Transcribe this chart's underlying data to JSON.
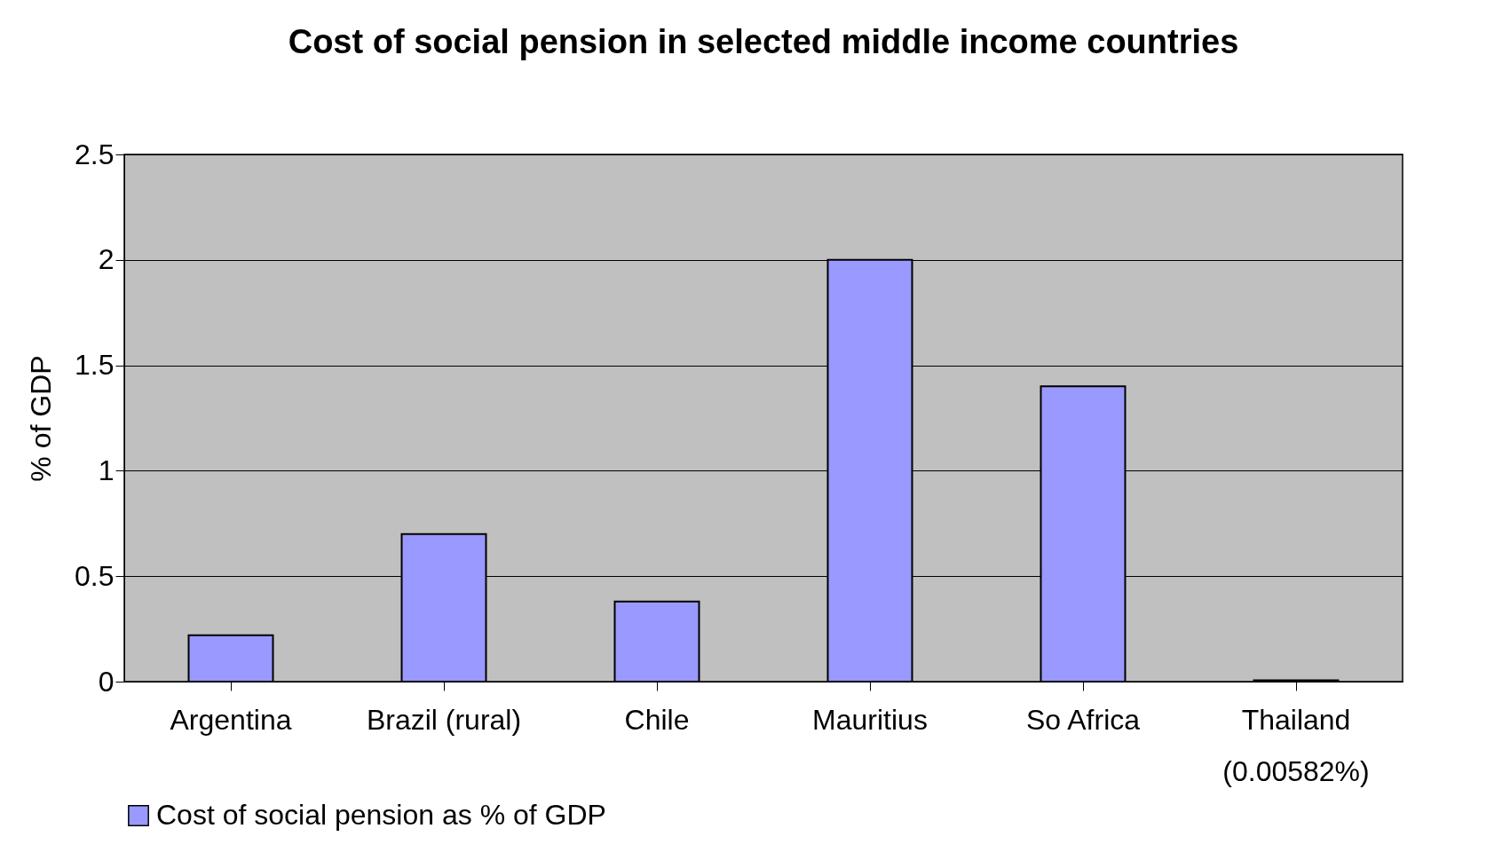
{
  "chart_data": {
    "type": "bar",
    "title": "Cost of social pension in selected middle income countries",
    "ylabel": "% of GDP",
    "categories": [
      "Argentina",
      "Brazil (rural)",
      "Chile",
      "Mauritius",
      "So Africa",
      "Thailand\n(0.00582%)"
    ],
    "series": [
      {
        "name": "Cost of social pension as % of GDP",
        "color": "#9999ff",
        "values": [
          0.22,
          0.7,
          0.38,
          2.0,
          1.4,
          0.00582
        ]
      }
    ],
    "ylim": [
      0,
      2.5
    ],
    "yticks": [
      0,
      0.5,
      1,
      1.5,
      2,
      2.5
    ],
    "grid": "y",
    "legend": "bottom"
  }
}
